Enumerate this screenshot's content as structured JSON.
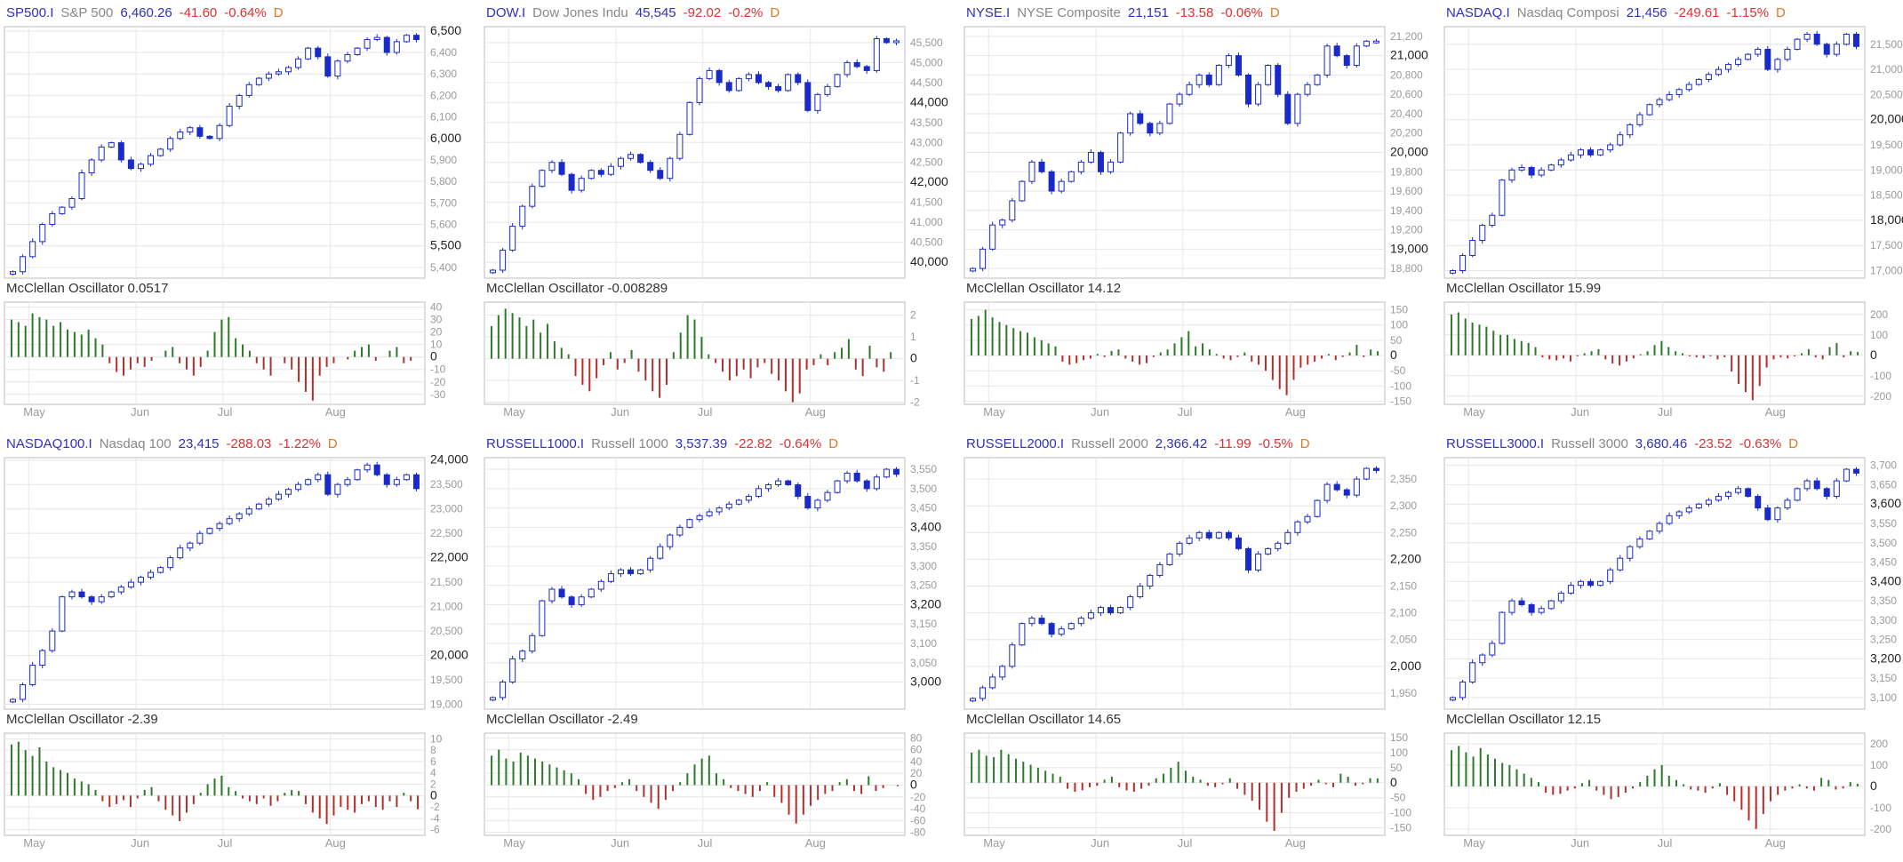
{
  "colors": {
    "up": "#2d7a2d",
    "down": "#b03030",
    "candle": "#1a2ac8",
    "grid": "#e6e6e6",
    "frame": "#bdbdbd",
    "ticktext": "#9a9a9a",
    "bigtick": "#222222"
  },
  "chart_data": [
    {
      "type": "candlestick",
      "symbol": "SP500.I",
      "name": "S&P 500",
      "price": "6,460.26",
      "change": "-41.60",
      "change_pct": "-0.64%",
      "period": "D",
      "price_points": [
        5380,
        5450,
        5520,
        5600,
        5650,
        5680,
        5720,
        5840,
        5900,
        5960,
        5980,
        5900,
        5860,
        5880,
        5920,
        5950,
        6000,
        6030,
        6050,
        6010,
        6000,
        6060,
        6150,
        6200,
        6250,
        6280,
        6300,
        6310,
        6330,
        6370,
        6420,
        6380,
        6290,
        6360,
        6390,
        6420,
        6460,
        6470,
        6400,
        6450,
        6480,
        6460
      ],
      "price_axis": {
        "min": 5350,
        "max": 6520,
        "ticks": [
          "5,400",
          "5,500",
          "5,600",
          "5,700",
          "5,800",
          "5,900",
          "6,000",
          "6,100",
          "6,200",
          "6,300",
          "6,400",
          "6,500"
        ],
        "big": [
          "5,500",
          "6,000",
          "6,500"
        ]
      },
      "osc_label": "McClellan Oscillator",
      "osc_value": "0.0517",
      "osc_values": [
        30,
        28,
        25,
        35,
        32,
        30,
        25,
        28,
        22,
        20,
        18,
        22,
        15,
        10,
        -5,
        -12,
        -15,
        -10,
        -5,
        -8,
        -3,
        0,
        5,
        8,
        -5,
        -10,
        -15,
        -8,
        5,
        20,
        30,
        32,
        15,
        10,
        5,
        -5,
        -10,
        -15,
        0,
        -5,
        -10,
        -20,
        -28,
        -35,
        -15,
        -8,
        -5,
        0,
        -2,
        5,
        8,
        10,
        -3,
        0,
        5,
        8,
        -5,
        -3,
        0
      ],
      "osc_axis": {
        "min": -38,
        "max": 44,
        "ticks": [
          "-30",
          "-20",
          "-10",
          "0",
          "10",
          "20",
          "30",
          "40"
        ]
      },
      "months": [
        "May",
        "Jun",
        "Jul",
        "Aug"
      ]
    },
    {
      "type": "candlestick",
      "symbol": "DOW.I",
      "name": "Dow Jones Indu",
      "price": "45,545",
      "change": "-92.02",
      "change_pct": "-0.2%",
      "period": "D",
      "price_points": [
        39800,
        40300,
        40900,
        41400,
        41900,
        42300,
        42500,
        42200,
        41800,
        42100,
        42300,
        42200,
        42400,
        42600,
        42700,
        42500,
        42300,
        42100,
        42600,
        43200,
        44000,
        44600,
        44800,
        44500,
        44300,
        44600,
        44700,
        44500,
        44400,
        44300,
        44700,
        44500,
        43800,
        44200,
        44400,
        44700,
        45000,
        44900,
        44800,
        45600,
        45500,
        45545
      ],
      "price_axis": {
        "min": 39600,
        "max": 45900,
        "ticks": [
          "40,000",
          "40,500",
          "41,000",
          "41,500",
          "42,000",
          "42,500",
          "43,000",
          "43,500",
          "44,000",
          "44,500",
          "45,000",
          "45,500"
        ],
        "big": [
          "40,000",
          "42,000",
          "44,000"
        ]
      },
      "osc_label": "McClellan Oscillator",
      "osc_value": "-0.008289",
      "osc_values": [
        1.5,
        2,
        2.3,
        2.1,
        1.9,
        1.5,
        1.8,
        1.2,
        1.6,
        0.8,
        0.5,
        0.2,
        -0.8,
        -1.2,
        -1.5,
        -0.9,
        -0.3,
        0.3,
        -0.5,
        -0.2,
        0.4,
        -0.6,
        -1,
        -1.5,
        -1.8,
        -1.2,
        0.3,
        1.2,
        2,
        1.8,
        1,
        0.2,
        -0.2,
        -0.6,
        -1,
        -0.8,
        -0.5,
        -0.9,
        -0.4,
        -0.2,
        -0.7,
        -1,
        -1.5,
        -2,
        -1.6,
        -0.5,
        -0.3,
        0.2,
        -0.3,
        0.3,
        0.5,
        0.9,
        -0.5,
        -0.8,
        0.6,
        -0.4,
        -0.6,
        0.3,
        0
      ],
      "osc_axis": {
        "min": -2.1,
        "max": 2.6,
        "ticks": [
          "-2",
          "-1",
          "0",
          "1",
          "2"
        ]
      },
      "months": [
        "May",
        "Jun",
        "Jul",
        "Aug"
      ]
    },
    {
      "type": "candlestick",
      "symbol": "NYSE.I",
      "name": "NYSE Composite",
      "price": "21,151",
      "change": "-13.58",
      "change_pct": "-0.06%",
      "period": "D",
      "price_points": [
        18800,
        19000,
        19250,
        19300,
        19500,
        19700,
        19900,
        19800,
        19600,
        19700,
        19800,
        19900,
        20000,
        19800,
        19900,
        20200,
        20400,
        20300,
        20200,
        20300,
        20500,
        20600,
        20700,
        20800,
        20700,
        20900,
        21000,
        20800,
        20500,
        20700,
        20900,
        20600,
        20300,
        20600,
        20700,
        20800,
        21100,
        21000,
        20900,
        21100,
        21150,
        21151
      ],
      "price_axis": {
        "min": 18700,
        "max": 21300,
        "ticks": [
          "18,800",
          "19,000",
          "19,200",
          "19,400",
          "19,600",
          "19,800",
          "20,000",
          "20,200",
          "20,400",
          "20,600",
          "20,800",
          "21,000",
          "21,200"
        ],
        "big": [
          "19,000",
          "20,000",
          "21,000"
        ]
      },
      "osc_label": "McClellan Oscillator",
      "osc_value": "14.12",
      "osc_values": [
        120,
        130,
        150,
        125,
        110,
        100,
        90,
        80,
        75,
        60,
        50,
        40,
        30,
        -20,
        -30,
        -25,
        -15,
        -10,
        5,
        -5,
        15,
        20,
        -10,
        -20,
        -30,
        -25,
        -5,
        10,
        20,
        40,
        60,
        80,
        30,
        40,
        20,
        5,
        -10,
        -15,
        -5,
        10,
        -20,
        -30,
        -50,
        -80,
        -110,
        -130,
        -80,
        -40,
        -30,
        -20,
        -10,
        5,
        -15,
        -5,
        10,
        35,
        -5,
        20,
        14
      ],
      "osc_axis": {
        "min": -160,
        "max": 175,
        "ticks": [
          "-150",
          "-100",
          "-50",
          "0",
          "50",
          "100",
          "150"
        ]
      },
      "months": [
        "May",
        "Jun",
        "Jul",
        "Aug"
      ]
    },
    {
      "type": "candlestick",
      "symbol": "NASDAQ.I",
      "name": "Nasdaq Composi",
      "price": "21,456",
      "change": "-249.61",
      "change_pct": "-1.15%",
      "period": "D",
      "price_points": [
        17000,
        17300,
        17600,
        17900,
        18100,
        18800,
        19000,
        19050,
        18900,
        19000,
        19100,
        19200,
        19300,
        19400,
        19300,
        19400,
        19500,
        19700,
        19900,
        20100,
        20300,
        20400,
        20500,
        20600,
        20700,
        20800,
        20900,
        21000,
        21100,
        21200,
        21300,
        21400,
        21000,
        21200,
        21400,
        21600,
        21700,
        21500,
        21300,
        21500,
        21700,
        21456
      ],
      "price_axis": {
        "min": 16850,
        "max": 21850,
        "ticks": [
          "17,000",
          "17,500",
          "18,000",
          "18,500",
          "19,000",
          "19,500",
          "20,000",
          "20,500",
          "21,000",
          "21,500"
        ],
        "big": [
          "18,000",
          "20,000"
        ]
      },
      "osc_label": "McClellan Oscillator",
      "osc_value": "15.99",
      "osc_values": [
        200,
        210,
        180,
        160,
        150,
        140,
        120,
        100,
        100,
        80,
        70,
        60,
        40,
        -10,
        -20,
        -25,
        -15,
        -30,
        -5,
        10,
        20,
        30,
        -20,
        -40,
        -50,
        -30,
        -15,
        5,
        20,
        50,
        70,
        40,
        20,
        10,
        -5,
        -10,
        -15,
        -5,
        -20,
        -10,
        -80,
        -140,
        -180,
        -220,
        -150,
        -60,
        -20,
        -10,
        -15,
        -5,
        10,
        30,
        -10,
        -20,
        40,
        60,
        -10,
        20,
        16
      ],
      "osc_axis": {
        "min": -240,
        "max": 260,
        "ticks": [
          "-200",
          "-100",
          "0",
          "100",
          "200"
        ]
      },
      "months": [
        "May",
        "Jun",
        "Jul",
        "Aug"
      ]
    },
    {
      "type": "candlestick",
      "symbol": "NASDAQ100.I",
      "name": "Nasdaq 100",
      "price": "23,415",
      "change": "-288.03",
      "change_pct": "-1.22%",
      "period": "D",
      "price_points": [
        19100,
        19400,
        19800,
        20100,
        20500,
        21200,
        21300,
        21200,
        21100,
        21200,
        21300,
        21400,
        21500,
        21600,
        21700,
        21800,
        22000,
        22200,
        22300,
        22500,
        22600,
        22700,
        22800,
        22900,
        23000,
        23100,
        23200,
        23300,
        23400,
        23500,
        23600,
        23700,
        23300,
        23500,
        23600,
        23800,
        23900,
        23700,
        23500,
        23600,
        23700,
        23415
      ],
      "price_axis": {
        "min": 18900,
        "max": 24050,
        "ticks": [
          "19,000",
          "19,500",
          "20,000",
          "20,500",
          "21,000",
          "21,500",
          "22,000",
          "22,500",
          "23,000",
          "23,500",
          "24,000"
        ],
        "big": [
          "20,000",
          "22,000",
          "24,000"
        ]
      },
      "osc_label": "McClellan Oscillator",
      "osc_value": "-2.39",
      "osc_values": [
        9,
        9.5,
        8,
        7,
        8.5,
        6,
        5,
        4.5,
        4,
        3,
        2.5,
        2,
        1,
        -1,
        -2,
        -1.5,
        -0.8,
        -2,
        -0.5,
        1,
        1.5,
        -1,
        -2.5,
        -3.5,
        -4.5,
        -3,
        -1.5,
        0.5,
        2,
        3,
        3.5,
        1.5,
        0.8,
        -0.5,
        -1,
        -1.5,
        -0.5,
        -1.8,
        -1,
        0.5,
        1,
        0.8,
        -1.5,
        -3,
        -4,
        -5,
        -3.5,
        -2,
        -2.5,
        -3,
        -1.5,
        -1,
        -2,
        -2.5,
        -1,
        -2,
        0.5,
        -1,
        -2.4
      ],
      "osc_axis": {
        "min": -7,
        "max": 11,
        "ticks": [
          "-6",
          "-4",
          "-2",
          "0",
          "2",
          "4",
          "6",
          "8",
          "10"
        ]
      },
      "months": [
        "May",
        "Jun",
        "Jul",
        "Aug"
      ]
    },
    {
      "type": "candlestick",
      "symbol": "RUSSELL1000.I",
      "name": "Russell 1000",
      "price": "3,537.39",
      "change": "-22.82",
      "change_pct": "-0.64%",
      "period": "D",
      "price_points": [
        2960,
        3000,
        3060,
        3080,
        3120,
        3210,
        3240,
        3220,
        3200,
        3220,
        3240,
        3260,
        3280,
        3290,
        3280,
        3290,
        3320,
        3350,
        3380,
        3400,
        3420,
        3430,
        3440,
        3450,
        3460,
        3470,
        3480,
        3500,
        3510,
        3520,
        3510,
        3480,
        3450,
        3470,
        3490,
        3520,
        3540,
        3520,
        3500,
        3530,
        3550,
        3537
      ],
      "price_axis": {
        "min": 2930,
        "max": 3580,
        "ticks": [
          "3,000",
          "3,050",
          "3,100",
          "3,150",
          "3,200",
          "3,250",
          "3,300",
          "3,350",
          "3,400",
          "3,450",
          "3,500",
          "3,550"
        ],
        "big": [
          "3,000",
          "3,200",
          "3,400"
        ]
      },
      "osc_label": "McClellan Oscillator",
      "osc_value": "-2.49",
      "osc_values": [
        50,
        60,
        45,
        40,
        55,
        50,
        45,
        40,
        35,
        30,
        25,
        20,
        10,
        -15,
        -25,
        -20,
        -10,
        -5,
        5,
        10,
        -10,
        -20,
        -30,
        -40,
        -25,
        -10,
        5,
        20,
        35,
        45,
        50,
        20,
        10,
        -5,
        -10,
        -15,
        -20,
        -10,
        5,
        -20,
        -30,
        -50,
        -65,
        -50,
        -35,
        -25,
        -15,
        -10,
        5,
        10,
        -10,
        -15,
        15,
        -10,
        -5,
        0,
        -2
      ],
      "osc_axis": {
        "min": -85,
        "max": 88,
        "ticks": [
          "-80",
          "-60",
          "-40",
          "-20",
          "0",
          "20",
          "40",
          "60",
          "80"
        ]
      },
      "months": [
        "May",
        "Jun",
        "Jul",
        "Aug"
      ]
    },
    {
      "type": "candlestick",
      "symbol": "RUSSELL2000.I",
      "name": "Russell 2000",
      "price": "2,366.42",
      "change": "-11.99",
      "change_pct": "-0.5%",
      "period": "D",
      "price_points": [
        1940,
        1960,
        1980,
        2000,
        2040,
        2080,
        2090,
        2080,
        2060,
        2070,
        2080,
        2090,
        2100,
        2110,
        2100,
        2110,
        2130,
        2150,
        2170,
        2190,
        2210,
        2230,
        2240,
        2250,
        2240,
        2250,
        2240,
        2220,
        2180,
        2210,
        2220,
        2230,
        2250,
        2270,
        2280,
        2310,
        2340,
        2330,
        2320,
        2350,
        2370,
        2366
      ],
      "price_axis": {
        "min": 1920,
        "max": 2390,
        "ticks": [
          "1,950",
          "2,000",
          "2,050",
          "2,100",
          "2,150",
          "2,200",
          "2,250",
          "2,300",
          "2,350"
        ],
        "big": [
          "2,000",
          "2,200"
        ]
      },
      "osc_label": "McClellan Oscillator",
      "osc_value": "14.65",
      "osc_values": [
        100,
        110,
        90,
        85,
        110,
        95,
        80,
        70,
        60,
        50,
        40,
        30,
        20,
        -20,
        -30,
        -25,
        -15,
        -10,
        10,
        20,
        -15,
        -25,
        -30,
        -20,
        -10,
        15,
        30,
        50,
        70,
        40,
        20,
        10,
        -10,
        -15,
        -5,
        15,
        -20,
        -40,
        -60,
        -90,
        -130,
        -160,
        -100,
        -50,
        -30,
        -20,
        -10,
        10,
        -5,
        -15,
        30,
        20,
        -10,
        -5,
        15,
        14
      ],
      "osc_axis": {
        "min": -175,
        "max": 165,
        "ticks": [
          "-150",
          "-100",
          "-50",
          "0",
          "50",
          "100",
          "150"
        ]
      },
      "months": [
        "May",
        "Jun",
        "Jul",
        "Aug"
      ]
    },
    {
      "type": "candlestick",
      "symbol": "RUSSELL3000.I",
      "name": "Russell 3000",
      "price": "3,680.46",
      "change": "-23.52",
      "change_pct": "-0.63%",
      "period": "D",
      "price_points": [
        3100,
        3140,
        3190,
        3210,
        3240,
        3320,
        3350,
        3340,
        3320,
        3330,
        3350,
        3370,
        3390,
        3400,
        3390,
        3400,
        3430,
        3460,
        3490,
        3510,
        3530,
        3550,
        3570,
        3580,
        3590,
        3600,
        3610,
        3620,
        3630,
        3640,
        3620,
        3590,
        3560,
        3590,
        3610,
        3640,
        3660,
        3640,
        3620,
        3660,
        3690,
        3680
      ],
      "price_axis": {
        "min": 3070,
        "max": 3720,
        "ticks": [
          "3,100",
          "3,150",
          "3,200",
          "3,250",
          "3,300",
          "3,350",
          "3,400",
          "3,450",
          "3,500",
          "3,550",
          "3,600",
          "3,650",
          "3,700"
        ],
        "big": [
          "3,200",
          "3,400",
          "3,600"
        ]
      },
      "osc_label": "McClellan Oscillator",
      "osc_value": "12.15",
      "osc_values": [
        170,
        190,
        160,
        140,
        180,
        150,
        130,
        110,
        100,
        80,
        60,
        40,
        20,
        -30,
        -40,
        -35,
        -20,
        -10,
        15,
        30,
        -20,
        -40,
        -60,
        -50,
        -30,
        -10,
        20,
        50,
        80,
        100,
        50,
        30,
        10,
        -15,
        -20,
        -30,
        -10,
        15,
        -40,
        -70,
        -110,
        -160,
        -200,
        -130,
        -70,
        -40,
        -20,
        -10,
        10,
        -10,
        -20,
        40,
        30,
        -15,
        -10,
        20,
        12
      ],
      "osc_axis": {
        "min": -230,
        "max": 250,
        "ticks": [
          "-200",
          "-100",
          "0",
          "100",
          "200"
        ]
      },
      "months": [
        "May",
        "Jun",
        "Jul",
        "Aug"
      ]
    }
  ]
}
